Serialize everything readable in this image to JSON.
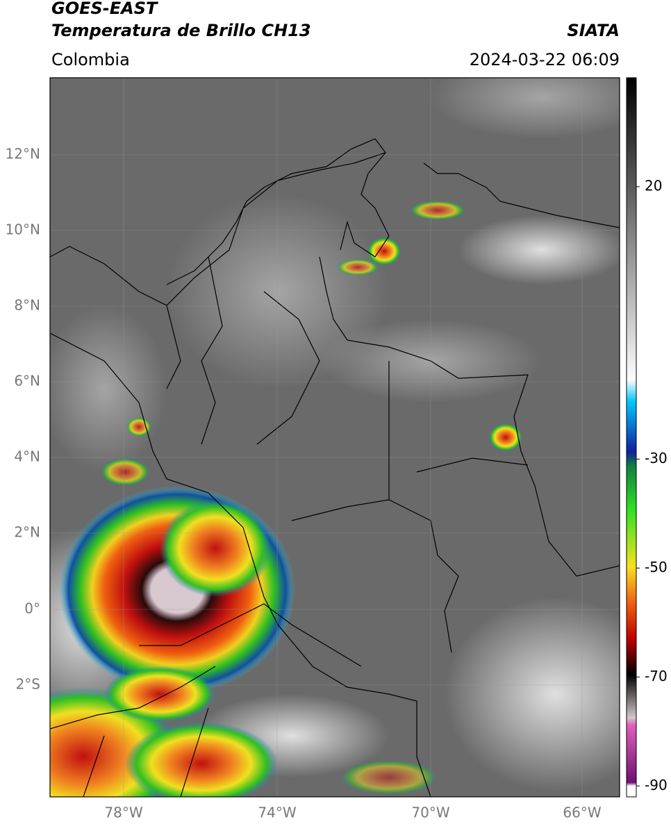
{
  "header": {
    "title": "GOES-EAST",
    "subtitle": "Temperatura de Brillo CH13",
    "source": "SIATA",
    "region": "Colombia",
    "timestamp": "2024-03-22 06:09"
  },
  "map": {
    "lat_labels": [
      "12°N",
      "10°N",
      "8°N",
      "6°N",
      "4°N",
      "2°N",
      "0°",
      "2°S"
    ],
    "lon_labels": [
      "78°W",
      "74°W",
      "70°W",
      "66°W"
    ]
  },
  "colorbar": {
    "range": [
      40,
      -92
    ],
    "ticks": [
      20,
      -30,
      -50,
      -70,
      -90
    ]
  }
}
